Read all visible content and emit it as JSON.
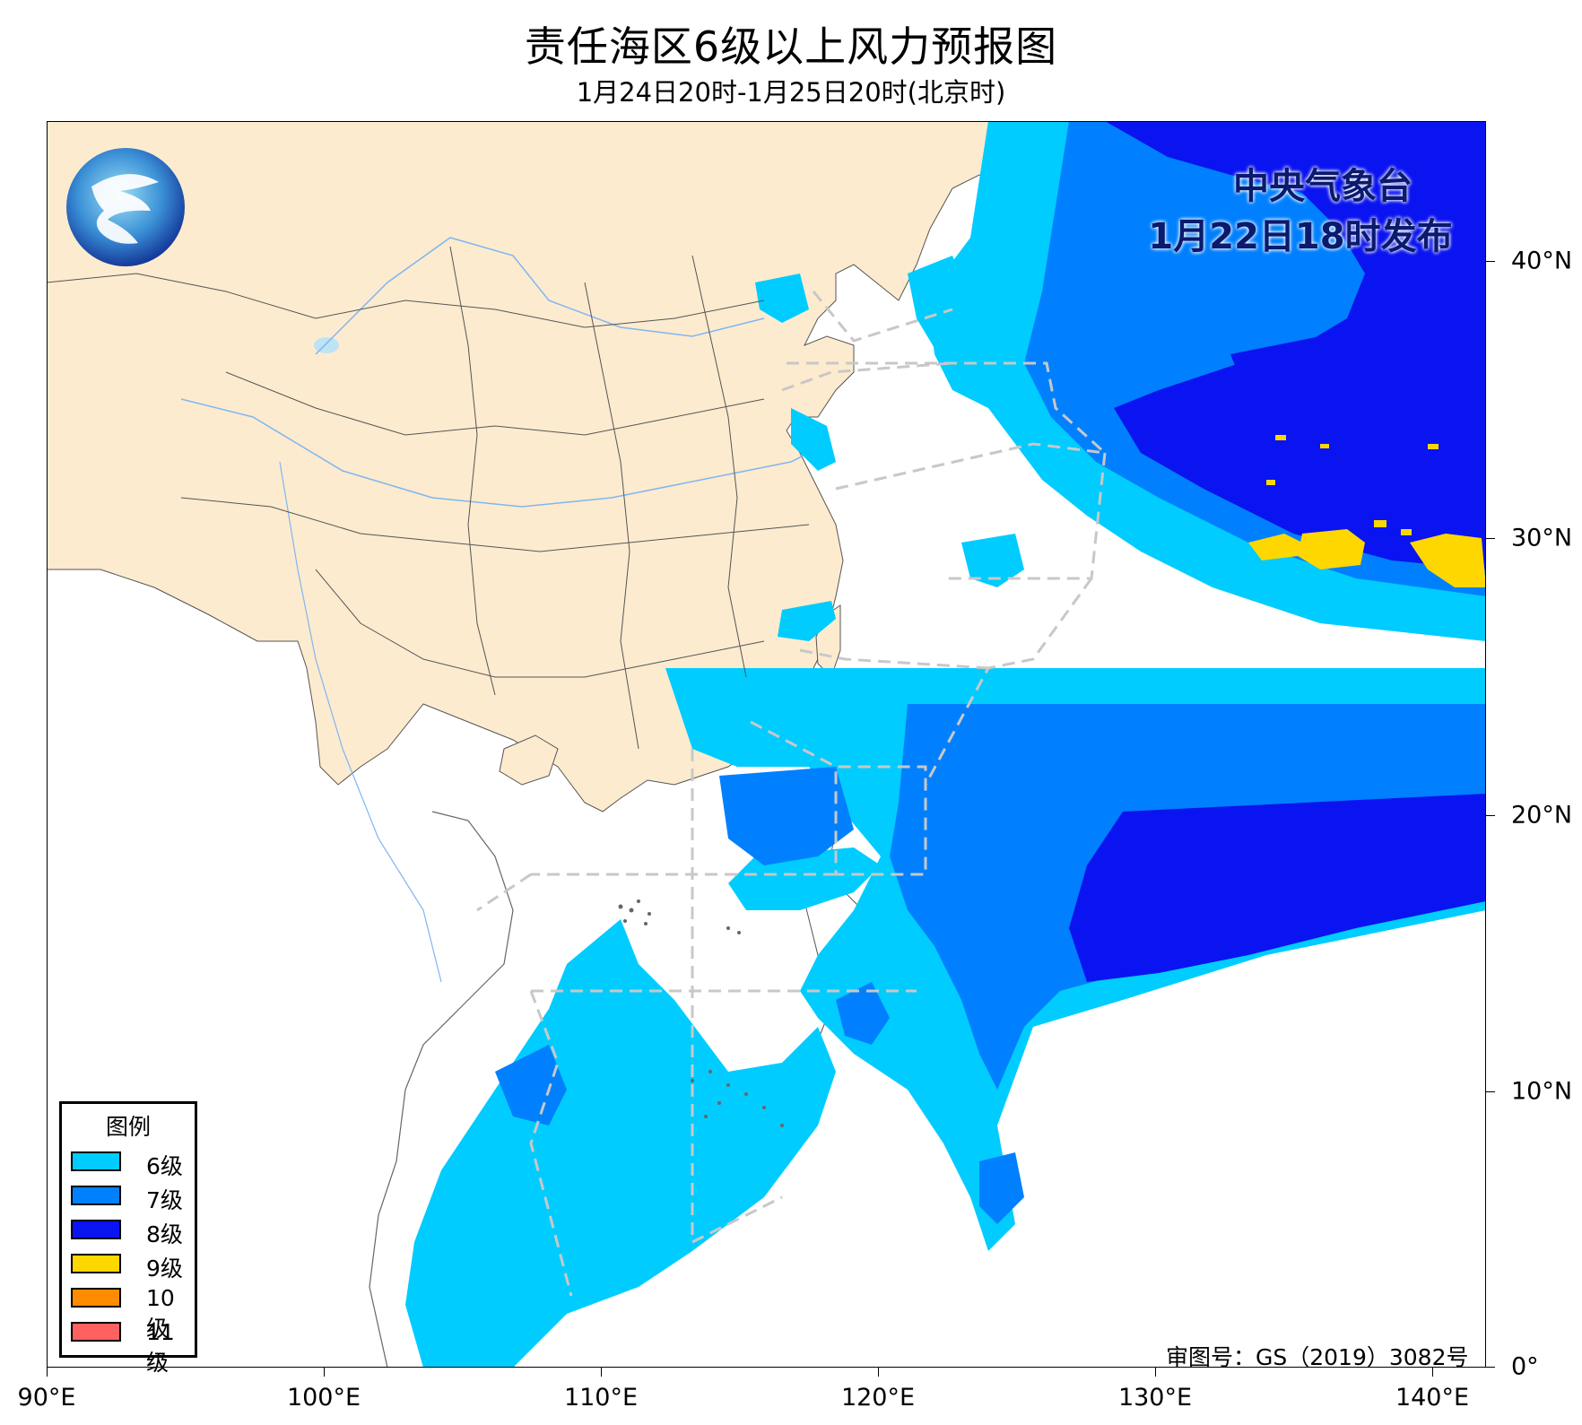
{
  "title": "责任海区6级以上风力预报图",
  "subtitle": "1月24日20时-1月25日20时(北京时)",
  "agency": "中央气象台",
  "issued": "1月22日18时发布",
  "review_number": "审图号：GS（2019）3082号",
  "axes": {
    "x_ticks": [
      "90°E",
      "100°E",
      "110°E",
      "120°E",
      "130°E",
      "140°E"
    ],
    "y_ticks": [
      "40°N",
      "30°N",
      "20°N",
      "10°N",
      "0°"
    ],
    "lon_range": [
      90,
      142
    ],
    "lat_range": [
      0,
      45
    ]
  },
  "legend": {
    "title": "图例",
    "items": [
      {
        "label": "6级",
        "color": "#00ccff"
      },
      {
        "label": "7级",
        "color": "#0080ff"
      },
      {
        "label": "8级",
        "color": "#0a14f0"
      },
      {
        "label": "9级",
        "color": "#ffd700"
      },
      {
        "label": "10级",
        "color": "#ff8c00"
      },
      {
        "label": "11级",
        "color": "#ff6060"
      }
    ]
  },
  "colors": {
    "land_china": "#fdebcf",
    "river": "#7fb6f2",
    "boundary": "#444444",
    "sea_area_dash": "#c8c8c8",
    "agency_text": "#0a1a6e"
  },
  "icons": {
    "logo": "cma-logo-icon"
  }
}
